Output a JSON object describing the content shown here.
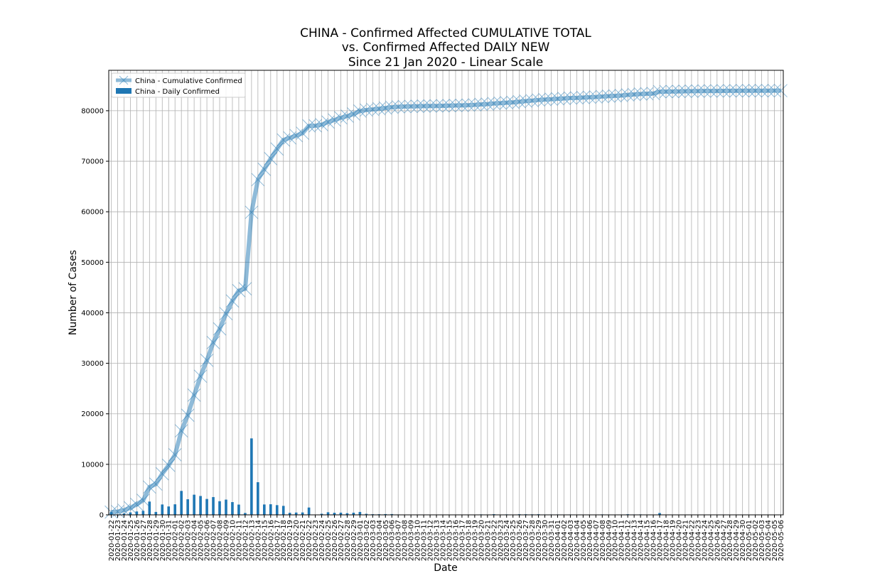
{
  "chart_data": {
    "type": "line",
    "title_lines": [
      "CHINA - Confirmed Affected CUMULATIVE TOTAL",
      "vs. Confirmed Affected DAILY NEW",
      "Since 21 Jan 2020 - Linear Scale"
    ],
    "xlabel": "Date",
    "ylabel": "Number of Cases",
    "ylim": [
      0,
      88000
    ],
    "yticks": [
      0,
      10000,
      20000,
      30000,
      40000,
      50000,
      60000,
      70000,
      80000
    ],
    "grid": true,
    "legend_position": "top-left",
    "colors": {
      "cumulative": "#1f77b4",
      "daily": "#1f77b4"
    },
    "x": [
      "2020-01-22",
      "2020-01-23",
      "2020-01-24",
      "2020-01-25",
      "2020-01-26",
      "2020-01-27",
      "2020-01-28",
      "2020-01-29",
      "2020-01-30",
      "2020-01-31",
      "2020-02-01",
      "2020-02-02",
      "2020-02-03",
      "2020-02-04",
      "2020-02-05",
      "2020-02-06",
      "2020-02-07",
      "2020-02-08",
      "2020-02-09",
      "2020-02-10",
      "2020-02-11",
      "2020-02-12",
      "2020-02-13",
      "2020-02-14",
      "2020-02-15",
      "2020-02-16",
      "2020-02-17",
      "2020-02-18",
      "2020-02-19",
      "2020-02-20",
      "2020-02-21",
      "2020-02-22",
      "2020-02-23",
      "2020-02-24",
      "2020-02-25",
      "2020-02-26",
      "2020-02-27",
      "2020-02-28",
      "2020-02-29",
      "2020-03-01",
      "2020-03-02",
      "2020-03-03",
      "2020-03-04",
      "2020-03-05",
      "2020-03-06",
      "2020-03-07",
      "2020-03-08",
      "2020-03-09",
      "2020-03-10",
      "2020-03-11",
      "2020-03-12",
      "2020-03-13",
      "2020-03-14",
      "2020-03-15",
      "2020-03-16",
      "2020-03-17",
      "2020-03-18",
      "2020-03-19",
      "2020-03-20",
      "2020-03-21",
      "2020-03-22",
      "2020-03-23",
      "2020-03-24",
      "2020-03-25",
      "2020-03-26",
      "2020-03-27",
      "2020-03-28",
      "2020-03-29",
      "2020-03-30",
      "2020-03-31",
      "2020-04-01",
      "2020-04-02",
      "2020-04-03",
      "2020-04-04",
      "2020-04-05",
      "2020-04-06",
      "2020-04-07",
      "2020-04-08",
      "2020-04-09",
      "2020-04-10",
      "2020-04-11",
      "2020-04-12",
      "2020-04-13",
      "2020-04-14",
      "2020-04-15",
      "2020-04-16",
      "2020-04-17",
      "2020-04-18",
      "2020-04-19",
      "2020-04-20",
      "2020-04-21",
      "2020-04-22",
      "2020-04-23",
      "2020-04-24",
      "2020-04-25",
      "2020-04-26",
      "2020-04-27",
      "2020-04-28",
      "2020-04-29",
      "2020-04-30",
      "2020-05-01",
      "2020-05-02",
      "2020-05-03",
      "2020-05-04",
      "2020-05-05",
      "2020-05-06"
    ],
    "series": [
      {
        "name": "China - Cumulative Confirmed",
        "kind": "line",
        "values": [
          548,
          643,
          920,
          1406,
          2075,
          2877,
          5509,
          6087,
          8141,
          9802,
          11891,
          16630,
          19716,
          23707,
          27440,
          30587,
          34110,
          36814,
          39829,
          42354,
          44386,
          44759,
          59895,
          66358,
          68413,
          70513,
          72434,
          74211,
          74619,
          75077,
          75550,
          77001,
          77022,
          77241,
          77754,
          78166,
          78600,
          78928,
          79356,
          79932,
          80136,
          80261,
          80386,
          80537,
          80690,
          80770,
          80823,
          80860,
          80887,
          80921,
          80932,
          80945,
          80977,
          81003,
          81033,
          81058,
          81102,
          81156,
          81250,
          81305,
          81435,
          81498,
          81591,
          81661,
          81782,
          81897,
          81999,
          82122,
          82198,
          82279,
          82361,
          82432,
          82511,
          82543,
          82602,
          82665,
          82718,
          82809,
          82883,
          82941,
          83014,
          83134,
          83213,
          83306,
          83356,
          83403,
          83760,
          83787,
          83805,
          83817,
          83853,
          83868,
          83884,
          83899,
          83909,
          83912,
          83918,
          83940,
          83944,
          83956,
          83959,
          83959,
          83964,
          83966,
          83968,
          83970
        ]
      },
      {
        "name": "China - Daily Confirmed",
        "kind": "bar",
        "values": [
          548,
          95,
          277,
          486,
          669,
          802,
          2632,
          578,
          2054,
          1661,
          2089,
          4739,
          3086,
          3991,
          3733,
          3147,
          3523,
          2704,
          3015,
          2525,
          2032,
          373,
          15136,
          6463,
          2055,
          2100,
          1921,
          1777,
          408,
          458,
          473,
          1451,
          21,
          219,
          513,
          412,
          434,
          328,
          428,
          576,
          204,
          125,
          125,
          151,
          153,
          80,
          53,
          37,
          27,
          34,
          11,
          13,
          32,
          26,
          30,
          25,
          44,
          54,
          94,
          55,
          130,
          63,
          93,
          70,
          121,
          115,
          102,
          123,
          76,
          81,
          82,
          71,
          79,
          32,
          59,
          63,
          53,
          91,
          74,
          58,
          73,
          120,
          79,
          93,
          50,
          47,
          357,
          27,
          18,
          12,
          36,
          15,
          16,
          15,
          10,
          3,
          6,
          22,
          4,
          12,
          3,
          0,
          5,
          2,
          2,
          2
        ]
      }
    ]
  }
}
